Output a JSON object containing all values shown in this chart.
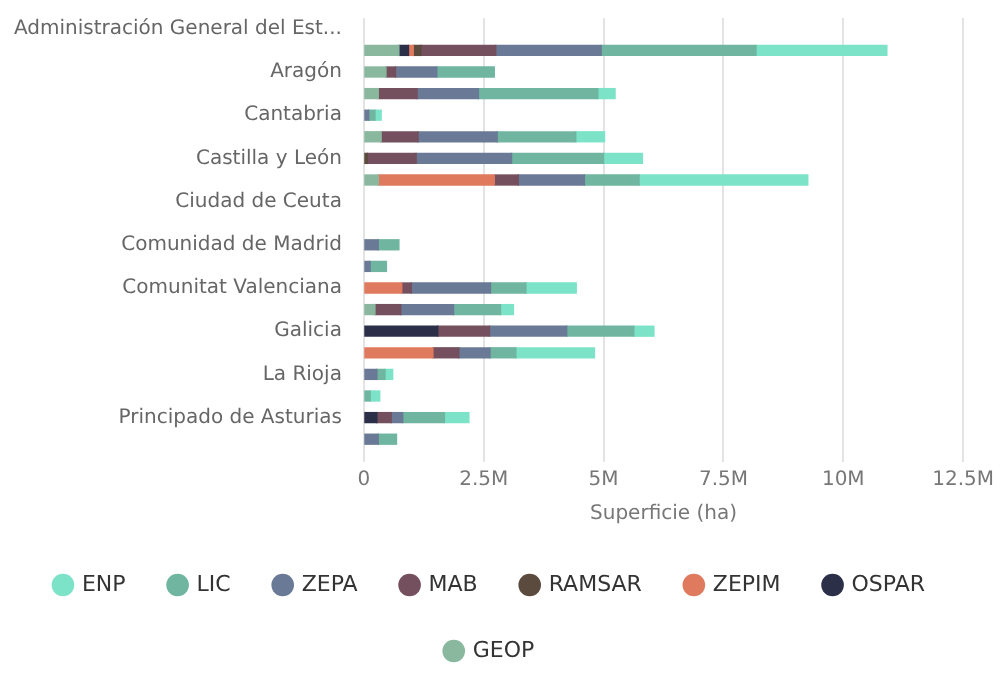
{
  "chart_data": {
    "type": "bar",
    "orientation": "horizontal",
    "stacked": true,
    "xlabel": "Superficie (ha)",
    "categories": [
      "Administración General del Est...",
      null,
      "Aragón",
      null,
      "Cantabria",
      null,
      "Castilla y León",
      null,
      "Ciudad de Ceuta",
      null,
      "Comunidad de Madrid",
      null,
      "Comunitat Valenciana",
      null,
      "Galicia",
      null,
      "La Rioja",
      null,
      "Principado de Asturias",
      null
    ],
    "xlim": [
      0,
      12500000
    ],
    "xticks": [
      0,
      {
        "value": 2500000,
        "label": "2.5M"
      },
      {
        "value": 5000000,
        "label": "5M"
      },
      {
        "value": 7500000,
        "label": "7.5M"
      },
      {
        "value": 10000000,
        "label": "10M"
      },
      {
        "value": 12500000,
        "label": "12.5M"
      }
    ],
    "grid": "x",
    "legend": "bottom",
    "series": [
      {
        "name": "GEOP",
        "color": "#8ab89e",
        "values": [
          null,
          730000,
          460000,
          300000,
          null,
          360000,
          null,
          300000,
          null,
          null,
          null,
          null,
          null,
          230000,
          null,
          null,
          null,
          null,
          null,
          null
        ]
      },
      {
        "name": "OSPAR",
        "color": "#2c2f48",
        "values": [
          null,
          200000,
          null,
          null,
          null,
          null,
          null,
          null,
          null,
          null,
          null,
          null,
          null,
          null,
          1540000,
          null,
          null,
          null,
          270000,
          null
        ]
      },
      {
        "name": "ZEPIM",
        "color": "#e07a5f",
        "values": [
          null,
          100000,
          null,
          null,
          null,
          null,
          null,
          2420000,
          null,
          null,
          null,
          null,
          790000,
          null,
          null,
          1440000,
          null,
          null,
          null,
          null
        ]
      },
      {
        "name": "RAMSAR",
        "color": "#5b4a3e",
        "values": [
          null,
          160000,
          null,
          null,
          null,
          null,
          70000,
          null,
          null,
          null,
          null,
          null,
          null,
          null,
          null,
          null,
          null,
          null,
          null,
          null
        ]
      },
      {
        "name": "MAB",
        "color": "#74505e",
        "values": [
          null,
          1560000,
          200000,
          810000,
          null,
          770000,
          1020000,
          500000,
          null,
          null,
          null,
          null,
          200000,
          540000,
          1080000,
          540000,
          null,
          null,
          300000,
          null
        ]
      },
      {
        "name": "ZEPA",
        "color": "#6a7a96",
        "values": [
          null,
          2200000,
          860000,
          1280000,
          100000,
          1650000,
          1990000,
          1380000,
          null,
          null,
          300000,
          130000,
          1650000,
          1100000,
          1610000,
          650000,
          270000,
          null,
          240000,
          300000
        ]
      },
      {
        "name": "LIC",
        "color": "#6fb5a0",
        "values": [
          null,
          3230000,
          1200000,
          2490000,
          130000,
          1640000,
          1920000,
          1140000,
          null,
          null,
          430000,
          340000,
          740000,
          980000,
          1400000,
          540000,
          170000,
          130000,
          870000,
          380000
        ]
      },
      {
        "name": "ENP",
        "color": "#7de3c8",
        "values": [
          null,
          2730000,
          null,
          360000,
          130000,
          600000,
          810000,
          3520000,
          null,
          null,
          null,
          null,
          1050000,
          270000,
          420000,
          1640000,
          160000,
          200000,
          510000,
          null
        ]
      }
    ]
  }
}
